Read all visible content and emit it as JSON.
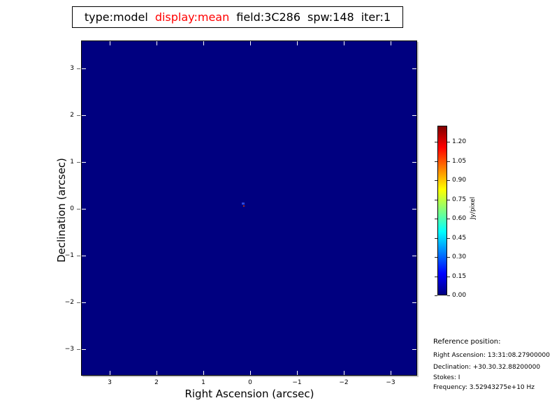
{
  "header": {
    "tokens": [
      {
        "text": "type:model",
        "color": "#000000"
      },
      {
        "text": "display:mean",
        "color": "#ff0000"
      },
      {
        "text": "field:3C286",
        "color": "#000000"
      },
      {
        "text": "spw:148",
        "color": "#000000"
      },
      {
        "text": "iter:1",
        "color": "#000000"
      }
    ]
  },
  "chart_data": {
    "type": "heatmap",
    "title": "type:model display:mean field:3C286 spw:148 iter:1",
    "xlabel": "Right Ascension (arcsec)",
    "ylabel": "Declination (arcsec)",
    "xticks": [
      "3",
      "2",
      "1",
      "0",
      "−1",
      "−2",
      "−3"
    ],
    "yticks": [
      "3",
      "2",
      "1",
      "0",
      "−1",
      "−2",
      "−3"
    ],
    "x_range": [
      3.6,
      -3.6
    ],
    "y_range": [
      -3.6,
      3.6
    ],
    "grid": false,
    "image_background_color": "#000080",
    "colorbar": {
      "label": "Jy/pixel",
      "tick_labels": [
        "0.00",
        "0.15",
        "0.30",
        "0.45",
        "0.60",
        "0.75",
        "0.90",
        "1.05",
        "1.20"
      ],
      "vmin": 0.0,
      "vmax": 1.33,
      "colormap": "jet",
      "stops": [
        {
          "pos": 0.0,
          "color": "#000080"
        },
        {
          "pos": 0.125,
          "color": "#0000ff"
        },
        {
          "pos": 0.375,
          "color": "#00ffff"
        },
        {
          "pos": 0.625,
          "color": "#ffff00"
        },
        {
          "pos": 0.875,
          "color": "#ff0000"
        },
        {
          "pos": 1.0,
          "color": "#800000"
        }
      ]
    },
    "components": [
      {
        "name": "model-source-pixel",
        "ra": 0.15,
        "dec": 0.11,
        "w": 4,
        "h": 3,
        "color": "#2b49dd"
      },
      {
        "name": "model-source-peak-pixel",
        "ra": 0.14,
        "dec": 0.06,
        "w": 2,
        "h": 2,
        "color": "#a8321e"
      }
    ]
  },
  "reference": {
    "title": "Reference position:",
    "lines": [
      "Right Ascension: 13:31:08.27900000",
      "Declination: +30.30.32.88200000",
      "Stokes: I",
      "Frequency: 3.52943275e+10 Hz"
    ]
  }
}
